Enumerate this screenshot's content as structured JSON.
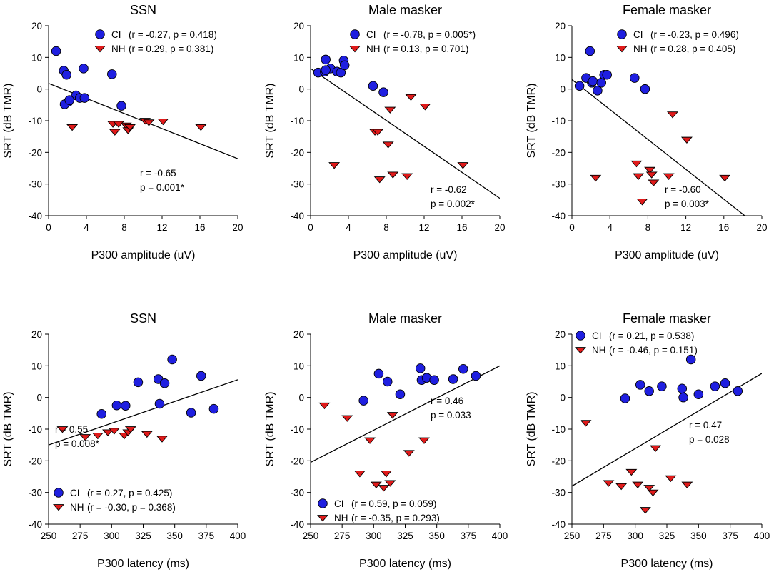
{
  "colors": {
    "ci": "#1f1fe0",
    "nh": "#e01a1a",
    "axis": "#000000",
    "background": "#ffffff"
  },
  "chart_data": [
    {
      "type": "scatter",
      "title": "SSN",
      "xlabel": "P300 amplitude (uV)",
      "ylabel": "SRT (dB TMR)",
      "xlim": [
        0,
        20
      ],
      "ylim": [
        -40,
        20
      ],
      "xticks": [
        "0",
        "4",
        "8",
        "12",
        "16",
        "20"
      ],
      "xtick_values": [
        0,
        4,
        8,
        12,
        16,
        20
      ],
      "yticks": [
        "-40",
        "-30",
        "-20",
        "-10",
        "0",
        "10",
        "20"
      ],
      "ytick_values": [
        -40,
        -30,
        -20,
        -10,
        0,
        10,
        20
      ],
      "legend_position": "top-right",
      "series": [
        {
          "name": "CI",
          "stats": "(r = -0.27, p = 0.418)",
          "marker": "circle",
          "x": [
            0.8,
            1.6,
            1.9,
            2.1,
            2.9,
            3.3,
            3.7,
            1.7,
            2.2,
            6.7,
            7.7,
            3.8
          ],
          "y": [
            12,
            5.8,
            4.5,
            -4,
            -2,
            -2.8,
            6.5,
            -4.8,
            -3.5,
            4.7,
            -5.3,
            -2.8
          ]
        },
        {
          "name": "NH",
          "stats": "(r = 0.29, p = 0.381)",
          "marker": "triangle-down",
          "x": [
            2.5,
            6.8,
            7.0,
            7.4,
            8.2,
            8.4,
            8.6,
            10.2,
            10.6,
            12.1,
            16.1
          ],
          "y": [
            -12,
            -11,
            -13.5,
            -11,
            -11.5,
            -13,
            -12,
            -10,
            -10.5,
            -10.2,
            -12
          ]
        }
      ],
      "regression": {
        "x": [
          0,
          20
        ],
        "y": [
          1.8,
          -22
        ],
        "r_text": "r = -0.65",
        "p_text": "p = 0.001*"
      }
    },
    {
      "type": "scatter",
      "title": "Male masker",
      "xlabel": "P300 amplitude (uV)",
      "ylabel": "SRT (dB TMR)",
      "xlim": [
        0,
        20
      ],
      "ylim": [
        -40,
        20
      ],
      "xticks": [
        "0",
        "4",
        "8",
        "12",
        "16",
        "20"
      ],
      "xtick_values": [
        0,
        4,
        8,
        12,
        16,
        20
      ],
      "yticks": [
        "-40",
        "-30",
        "-20",
        "-10",
        "0",
        "10",
        "20"
      ],
      "ytick_values": [
        -40,
        -30,
        -20,
        -10,
        0,
        10,
        20
      ],
      "legend_position": "top-right",
      "series": [
        {
          "name": "CI",
          "stats": "(r = -0.78, p = 0.005*)",
          "marker": "circle",
          "x": [
            0.8,
            1.5,
            1.6,
            2.1,
            2.8,
            3.2,
            3.5,
            3.6,
            6.6,
            7.7,
            1.6
          ],
          "y": [
            5.2,
            5.5,
            9.3,
            6.5,
            5.5,
            5.2,
            9,
            7.5,
            1,
            -1,
            6
          ],
          "note": ""
        },
        {
          "name": "NH",
          "stats": "(r = 0.13, p = 0.701)",
          "marker": "triangle-down",
          "x": [
            2.5,
            6.8,
            7.1,
            7.3,
            8.2,
            8.4,
            8.7,
            10.2,
            10.6,
            12.1,
            16.1
          ],
          "y": [
            -24,
            -13.5,
            -13.5,
            -28.5,
            -17.5,
            -6.5,
            -27,
            -27.5,
            -2.5,
            -5.5,
            -24
          ]
        }
      ],
      "regression": {
        "x": [
          0,
          20
        ],
        "y": [
          6.5,
          -34.5
        ],
        "r_text": "r = -0.62",
        "p_text": "p = 0.002*"
      }
    },
    {
      "type": "scatter",
      "title": "Female masker",
      "xlabel": "P300 amplitude (uV)",
      "ylabel": "SRT (dB TMR)",
      "xlim": [
        0,
        20
      ],
      "ylim": [
        -40,
        20
      ],
      "xticks": [
        "0",
        "4",
        "8",
        "12",
        "16",
        "20"
      ],
      "xtick_values": [
        0,
        4,
        8,
        12,
        16,
        20
      ],
      "yticks": [
        "-40",
        "-30",
        "-20",
        "-10",
        "0",
        "10",
        "20"
      ],
      "ytick_values": [
        -40,
        -30,
        -20,
        -10,
        0,
        10,
        20
      ],
      "legend_position": "top-right",
      "series": [
        {
          "name": "CI",
          "stats": "(r = -0.23, p = 0.496)",
          "marker": "circle",
          "x": [
            0.8,
            1.5,
            1.9,
            2.1,
            2.2,
            2.7,
            3.1,
            3.4,
            3.7,
            6.6,
            7.7
          ],
          "y": [
            1,
            3.5,
            12,
            2,
            2.5,
            -0.5,
            2,
            4.5,
            4.5,
            3.5,
            0
          ],
          "note": ""
        },
        {
          "name": "NH",
          "stats": "(r = 0.28, p = 0.405)",
          "marker": "triangle-down",
          "x": [
            2.5,
            6.8,
            7.0,
            7.4,
            8.2,
            8.4,
            8.6,
            10.2,
            10.6,
            12.1,
            16.1
          ],
          "y": [
            -28,
            -23.5,
            -27.5,
            -35.5,
            -25.5,
            -27,
            -29.5,
            -27.5,
            -8,
            -16,
            -28
          ]
        }
      ],
      "regression": {
        "x": [
          0,
          18.2
        ],
        "y": [
          3,
          -40
        ],
        "r_text": "r = -0.60",
        "p_text": "p = 0.003*"
      }
    },
    {
      "type": "scatter",
      "title": "SSN",
      "xlabel": "P300 latency (ms)",
      "ylabel": "SRT (dB TMR)",
      "xlim": [
        250,
        400
      ],
      "ylim": [
        -40,
        20
      ],
      "xticks": [
        "250",
        "275",
        "300",
        "325",
        "350",
        "375",
        "400"
      ],
      "xtick_values": [
        250,
        275,
        300,
        325,
        350,
        375,
        400
      ],
      "yticks": [
        "-40",
        "-30",
        "-20",
        "-10",
        "0",
        "10",
        "20"
      ],
      "ytick_values": [
        -40,
        -30,
        -20,
        -10,
        0,
        10,
        20
      ],
      "legend_position": "bottom-left",
      "series": [
        {
          "name": "CI",
          "stats": "(r = 0.27, p = 0.425)",
          "marker": "circle",
          "x": [
            292,
            304,
            311,
            321,
            337,
            338,
            342,
            348,
            363,
            371,
            381
          ],
          "y": [
            -5.2,
            -2.5,
            -2.6,
            4.8,
            5.8,
            -2.0,
            4.5,
            12,
            -4.8,
            6.8,
            -3.6
          ]
        },
        {
          "name": "NH",
          "stats": "(r = -0.30, p = 0.368)",
          "marker": "triangle-down",
          "x": [
            261,
            279,
            289,
            297,
            302,
            310,
            313,
            315,
            328,
            340
          ],
          "y": [
            -10,
            -12.5,
            -12,
            -11,
            -10.5,
            -12,
            -11,
            -10,
            -11.5,
            -13
          ]
        }
      ],
      "regression": {
        "x": [
          250,
          400
        ],
        "y": [
          -15,
          5.6
        ],
        "r_text": "r = 0.55",
        "p_text": "p = 0.008*"
      }
    },
    {
      "type": "scatter",
      "title": "Male masker",
      "xlabel": "P300 latency (ms)",
      "ylabel": "SRT (dB TMR)",
      "xlim": [
        250,
        400
      ],
      "ylim": [
        -40,
        20
      ],
      "xticks": [
        "250",
        "275",
        "300",
        "325",
        "350",
        "375",
        "400"
      ],
      "xtick_values": [
        250,
        275,
        300,
        325,
        350,
        375,
        400
      ],
      "yticks": [
        "-40",
        "-30",
        "-20",
        "-10",
        "0",
        "10",
        "20"
      ],
      "ytick_values": [
        -40,
        -30,
        -20,
        -10,
        0,
        10,
        20
      ],
      "legend_position": "bottom-left",
      "series": [
        {
          "name": "CI",
          "stats": "(r = 0.59, p = 0.059)",
          "marker": "circle",
          "x": [
            292,
            304,
            311,
            321,
            337,
            338,
            342,
            348,
            363,
            371,
            381
          ],
          "y": [
            -1,
            7.5,
            5,
            1,
            9.2,
            5.5,
            6.2,
            5.5,
            5.8,
            9,
            6.8
          ]
        },
        {
          "name": "NH",
          "stats": "(r = -0.35, p = 0.293)",
          "marker": "triangle-down",
          "x": [
            261,
            279,
            289,
            297,
            302,
            308,
            310,
            313,
            315,
            328,
            340
          ],
          "y": [
            -2.5,
            -6.5,
            -24,
            -13.5,
            -27.5,
            -28.5,
            -24,
            -27,
            -5.5,
            -17.5,
            -13.5
          ]
        }
      ],
      "regression": {
        "x": [
          250,
          400
        ],
        "y": [
          -20.5,
          10
        ],
        "r_text": "r = 0.46",
        "p_text": "p = 0.033"
      }
    },
    {
      "type": "scatter",
      "title": "Female masker",
      "xlabel": "P300 latency (ms)",
      "ylabel": "SRT (dB TMR)",
      "xlim": [
        250,
        400
      ],
      "ylim": [
        -40,
        20
      ],
      "xticks": [
        "250",
        "275",
        "300",
        "325",
        "350",
        "375",
        "400"
      ],
      "xtick_values": [
        250,
        275,
        300,
        325,
        350,
        375,
        400
      ],
      "yticks": [
        "-40",
        "-30",
        "-20",
        "-10",
        "0",
        "10",
        "20"
      ],
      "ytick_values": [
        -40,
        -30,
        -20,
        -10,
        0,
        10,
        20
      ],
      "legend_position": "top-left",
      "series": [
        {
          "name": "CI",
          "stats": "(r = 0.21, p = 0.538)",
          "marker": "circle",
          "x": [
            292,
            304,
            311,
            321,
            337,
            338,
            344,
            350,
            363,
            371,
            381
          ],
          "y": [
            -0.3,
            4,
            2,
            3.5,
            2.8,
            0,
            12,
            1,
            3.5,
            4.5,
            2
          ]
        },
        {
          "name": "NH",
          "stats": "(r = -0.46, p = 0.151)",
          "marker": "triangle-down",
          "x": [
            261,
            279,
            289,
            297,
            302,
            308,
            311,
            314,
            316,
            328,
            341
          ],
          "y": [
            -8,
            -27,
            -28,
            -23.5,
            -27.5,
            -35.5,
            -28.5,
            -30,
            -16,
            -25.5,
            -27.5
          ]
        }
      ],
      "regression": {
        "x": [
          250,
          400
        ],
        "y": [
          -28,
          7.6
        ],
        "r_text": "r = 0.47",
        "p_text": "p = 0.028"
      }
    }
  ]
}
